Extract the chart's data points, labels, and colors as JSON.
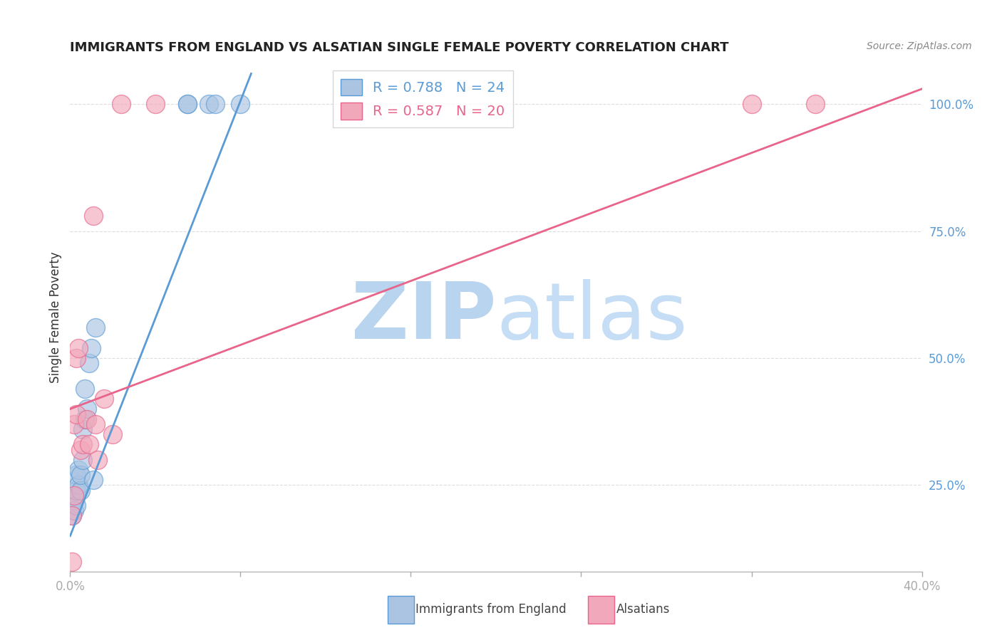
{
  "title": "IMMIGRANTS FROM ENGLAND VS ALSATIAN SINGLE FEMALE POVERTY CORRELATION CHART",
  "source": "Source: ZipAtlas.com",
  "ylabel": "Single Female Poverty",
  "y_ticks": [
    0.25,
    0.5,
    0.75,
    1.0
  ],
  "y_tick_labels": [
    "25.0%",
    "50.0%",
    "75.0%",
    "100.0%"
  ],
  "legend_blue_text": "R = 0.788   N = 24",
  "legend_pink_text": "R = 0.587   N = 20",
  "legend_label_blue": "Immigrants from England",
  "legend_label_pink": "Alsatians",
  "blue_color": "#aac4e2",
  "pink_color": "#f2a8bb",
  "blue_line_color": "#5b9bd5",
  "pink_line_color": "#e8648a",
  "watermark_zip_color": "#b8d4ee",
  "watermark_atlas_color": "#c5ddf5",
  "blue_x": [
    0.001,
    0.001,
    0.002,
    0.003,
    0.003,
    0.003,
    0.004,
    0.004,
    0.005,
    0.005,
    0.006,
    0.006,
    0.007,
    0.007,
    0.008,
    0.009,
    0.01,
    0.011,
    0.012,
    0.055,
    0.055,
    0.065,
    0.068,
    0.08
  ],
  "blue_y": [
    0.19,
    0.22,
    0.2,
    0.21,
    0.24,
    0.27,
    0.25,
    0.28,
    0.24,
    0.27,
    0.3,
    0.36,
    0.38,
    0.44,
    0.4,
    0.49,
    0.52,
    0.26,
    0.56,
    1.0,
    1.0,
    1.0,
    1.0,
    1.0
  ],
  "pink_x": [
    0.001,
    0.001,
    0.002,
    0.002,
    0.003,
    0.003,
    0.004,
    0.005,
    0.006,
    0.008,
    0.009,
    0.011,
    0.012,
    0.013,
    0.016,
    0.02,
    0.024,
    0.04,
    0.32,
    0.35
  ],
  "pink_y": [
    0.1,
    0.19,
    0.23,
    0.37,
    0.39,
    0.5,
    0.52,
    0.32,
    0.33,
    0.38,
    0.33,
    0.78,
    0.37,
    0.3,
    0.42,
    0.35,
    1.0,
    1.0,
    1.0,
    1.0
  ],
  "blue_line_x": [
    0.0,
    0.085
  ],
  "blue_line_y": [
    0.15,
    1.06
  ],
  "pink_line_x": [
    0.0,
    0.4
  ],
  "pink_line_y": [
    0.4,
    1.03
  ],
  "xlim": [
    0.0,
    0.4
  ],
  "ylim": [
    0.08,
    1.08
  ],
  "x_ticks": [
    0.0,
    0.08,
    0.16,
    0.24,
    0.32,
    0.4
  ],
  "x_tick_labels": [
    "0.0%",
    "",
    "",
    "",
    "",
    "40.0%"
  ],
  "background": "#ffffff",
  "grid_color": "#dddddd",
  "title_fontsize": 13,
  "source_fontsize": 10,
  "tick_fontsize": 12
}
